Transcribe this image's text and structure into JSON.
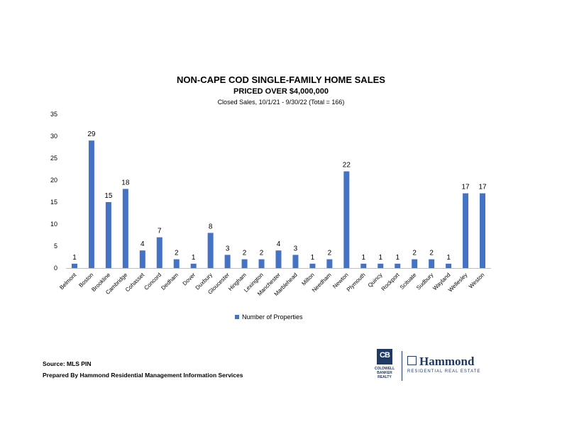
{
  "title": "NON-CAPE COD SINGLE-FAMILY HOME SALES",
  "subtitle": "PRICED OVER $4,000,000",
  "subsubtitle": "Closed Sales, 10/1/21 - 9/30/22 (Total = 166)",
  "footer": {
    "source": "Source: MLS PIN",
    "prepared": "Prepared By Hammond Residential Management Information Services"
  },
  "logos": {
    "cb_mark": "CB",
    "cb_line1": "COLDWELL",
    "cb_line2": "BANKER",
    "cb_line3": "REALTY",
    "hammond_name": "Hammond",
    "hammond_sub": "RESIDENTIAL REAL ESTATE"
  },
  "colors": {
    "bar": "#4472c4",
    "brand": "#1f3a63"
  },
  "chart_data": {
    "type": "bar",
    "categories": [
      "Belmont",
      "Boston",
      "Brookline",
      "Cambridge",
      "Cohasset",
      "Concord",
      "Dedham",
      "Dover",
      "Duxbury",
      "Gloucester",
      "Hingham",
      "Lexington",
      "Manchester",
      "Marblehead",
      "Milton",
      "Needham",
      "Newton",
      "Plymouth",
      "Quincy",
      "Rockport",
      "Scituate",
      "Sudbury",
      "Wayland",
      "Wellesley",
      "Weston"
    ],
    "series": [
      {
        "name": "Number of Properties",
        "values": [
          1,
          29,
          15,
          18,
          4,
          7,
          2,
          1,
          8,
          3,
          2,
          2,
          4,
          3,
          1,
          2,
          22,
          1,
          1,
          1,
          2,
          2,
          1,
          17,
          17
        ]
      }
    ],
    "ylim": [
      0,
      35
    ],
    "yticks": [
      0,
      5,
      10,
      15,
      20,
      25,
      30,
      35
    ],
    "legend_position": "bottom",
    "grid": false
  }
}
